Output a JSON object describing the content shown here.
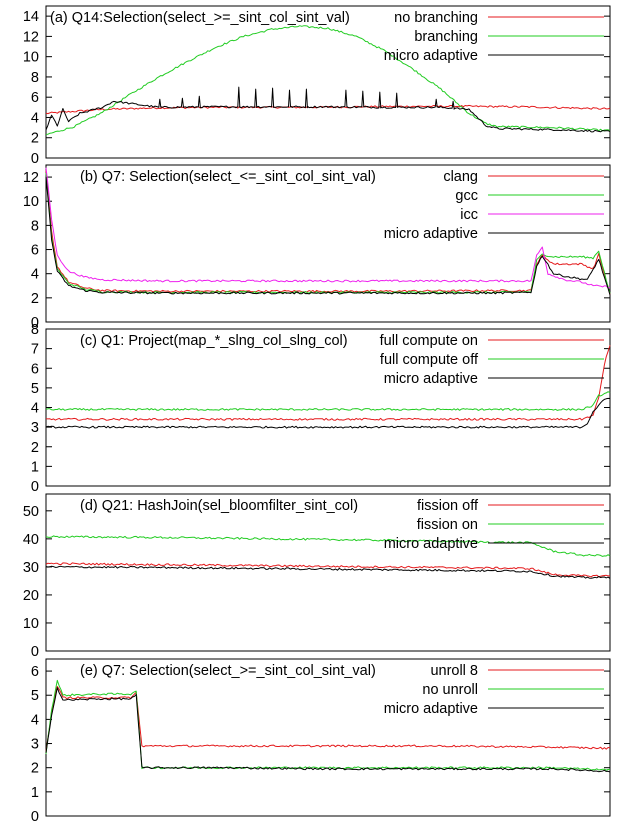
{
  "chart_data": [
    {
      "type": "line",
      "title": "(a) Q14:Selection(select_>=_sint_col_sint_val)",
      "xlabel": "",
      "ylabel": "",
      "ylim": [
        0,
        15
      ],
      "yticks": [
        0,
        2,
        4,
        6,
        8,
        10,
        12,
        14
      ],
      "grid": false,
      "legend": "top-right",
      "series": [
        {
          "name": "no branching",
          "color": "#e41a1c",
          "points": [
            [
              0,
              4.4
            ],
            [
              0.05,
              4.6
            ],
            [
              0.1,
              4.8
            ],
            [
              0.2,
              4.95
            ],
            [
              0.3,
              5.0
            ],
            [
              0.45,
              5.0
            ],
            [
              0.55,
              5.05
            ],
            [
              0.65,
              5.1
            ],
            [
              0.75,
              5.1
            ],
            [
              0.85,
              5.05
            ],
            [
              1.0,
              4.85
            ]
          ]
        },
        {
          "name": "branching",
          "color": "#22cc22",
          "points": [
            [
              0,
              2.3
            ],
            [
              0.05,
              3.1
            ],
            [
              0.1,
              4.5
            ],
            [
              0.15,
              6.3
            ],
            [
              0.2,
              8.0
            ],
            [
              0.25,
              9.5
            ],
            [
              0.3,
              10.9
            ],
            [
              0.35,
              12.0
            ],
            [
              0.4,
              12.7
            ],
            [
              0.45,
              13.0
            ],
            [
              0.5,
              12.8
            ],
            [
              0.55,
              12.0
            ],
            [
              0.6,
              10.6
            ],
            [
              0.65,
              8.8
            ],
            [
              0.7,
              6.8
            ],
            [
              0.75,
              4.4
            ],
            [
              0.78,
              3.4
            ],
            [
              0.8,
              3.1
            ],
            [
              0.9,
              3.0
            ],
            [
              1.0,
              2.7
            ]
          ]
        },
        {
          "name": "micro adaptive",
          "color": "#000000",
          "points": [
            [
              0,
              2.8
            ],
            [
              0.01,
              4.2
            ],
            [
              0.02,
              3.2
            ],
            [
              0.03,
              4.8
            ],
            [
              0.04,
              3.6
            ],
            [
              0.06,
              4.4
            ],
            [
              0.1,
              5.0
            ],
            [
              0.12,
              5.6
            ],
            [
              0.2,
              5.0
            ],
            [
              0.3,
              5.05
            ],
            [
              0.4,
              5.05
            ],
            [
              0.5,
              5.05
            ],
            [
              0.6,
              5.0
            ],
            [
              0.7,
              5.0
            ],
            [
              0.75,
              4.8
            ],
            [
              0.78,
              3.2
            ],
            [
              0.8,
              2.9
            ],
            [
              0.9,
              2.8
            ],
            [
              1.0,
              2.6
            ]
          ],
          "spikes": [
            [
              0.2,
              5.8
            ],
            [
              0.24,
              5.9
            ],
            [
              0.27,
              6.1
            ],
            [
              0.34,
              7.0
            ],
            [
              0.37,
              6.8
            ],
            [
              0.4,
              6.9
            ],
            [
              0.43,
              6.7
            ],
            [
              0.46,
              6.8
            ],
            [
              0.53,
              6.7
            ],
            [
              0.56,
              6.6
            ],
            [
              0.59,
              6.5
            ],
            [
              0.62,
              6.4
            ],
            [
              0.69,
              5.8
            ],
            [
              0.72,
              5.6
            ]
          ]
        }
      ]
    },
    {
      "type": "line",
      "title": "(b) Q7: Selection(select_<=_sint_col_sint_val)",
      "xlabel": "",
      "ylabel": "",
      "ylim": [
        0,
        13
      ],
      "yticks": [
        0,
        2,
        4,
        6,
        8,
        10,
        12
      ],
      "grid": false,
      "legend": "top-right",
      "series": [
        {
          "name": "clang",
          "color": "#e41a1c",
          "points": [
            [
              0,
              12.5
            ],
            [
              0.01,
              7.5
            ],
            [
              0.02,
              4.6
            ],
            [
              0.04,
              3.3
            ],
            [
              0.07,
              2.8
            ],
            [
              0.1,
              2.6
            ],
            [
              0.2,
              2.55
            ],
            [
              0.4,
              2.55
            ],
            [
              0.6,
              2.55
            ],
            [
              0.8,
              2.6
            ],
            [
              0.86,
              2.6
            ],
            [
              0.87,
              4.8
            ],
            [
              0.88,
              5.5
            ],
            [
              0.9,
              4.8
            ],
            [
              0.95,
              4.8
            ],
            [
              0.97,
              4.4
            ],
            [
              0.98,
              5.6
            ],
            [
              1.0,
              2.3
            ]
          ]
        },
        {
          "name": "gcc",
          "color": "#22cc22",
          "points": [
            [
              0,
              12.3
            ],
            [
              0.01,
              7.0
            ],
            [
              0.02,
              4.4
            ],
            [
              0.04,
              3.2
            ],
            [
              0.07,
              2.7
            ],
            [
              0.1,
              2.5
            ],
            [
              0.2,
              2.45
            ],
            [
              0.4,
              2.45
            ],
            [
              0.6,
              2.45
            ],
            [
              0.8,
              2.45
            ],
            [
              0.86,
              2.5
            ],
            [
              0.87,
              5.1
            ],
            [
              0.88,
              5.6
            ],
            [
              0.9,
              5.4
            ],
            [
              0.95,
              5.4
            ],
            [
              0.97,
              5.3
            ],
            [
              0.98,
              5.9
            ],
            [
              1.0,
              2.3
            ]
          ]
        },
        {
          "name": "icc",
          "color": "#ee22ee",
          "points": [
            [
              0,
              12.8
            ],
            [
              0.01,
              8.5
            ],
            [
              0.02,
              5.5
            ],
            [
              0.04,
              4.2
            ],
            [
              0.07,
              3.7
            ],
            [
              0.1,
              3.5
            ],
            [
              0.2,
              3.4
            ],
            [
              0.4,
              3.4
            ],
            [
              0.6,
              3.4
            ],
            [
              0.8,
              3.4
            ],
            [
              0.86,
              3.4
            ],
            [
              0.87,
              5.5
            ],
            [
              0.88,
              6.2
            ],
            [
              0.89,
              4.0
            ],
            [
              0.92,
              3.5
            ],
            [
              0.95,
              3.3
            ],
            [
              0.97,
              3.0
            ],
            [
              1.0,
              2.9
            ]
          ]
        },
        {
          "name": "micro adaptive",
          "color": "#000000",
          "points": [
            [
              0,
              12.0
            ],
            [
              0.01,
              6.8
            ],
            [
              0.02,
              4.2
            ],
            [
              0.04,
              3.0
            ],
            [
              0.07,
              2.6
            ],
            [
              0.1,
              2.45
            ],
            [
              0.2,
              2.4
            ],
            [
              0.4,
              2.4
            ],
            [
              0.6,
              2.4
            ],
            [
              0.8,
              2.4
            ],
            [
              0.86,
              2.45
            ],
            [
              0.87,
              4.6
            ],
            [
              0.88,
              5.5
            ],
            [
              0.9,
              4.0
            ],
            [
              0.93,
              3.7
            ],
            [
              0.96,
              3.5
            ],
            [
              0.98,
              5.2
            ],
            [
              1.0,
              2.2
            ]
          ]
        }
      ]
    },
    {
      "type": "line",
      "title": "(c) Q1: Project(map_*_slng_col_slng_col)",
      "xlabel": "",
      "ylabel": "",
      "ylim": [
        0,
        8
      ],
      "yticks": [
        0,
        1,
        2,
        3,
        4,
        5,
        6,
        7,
        8
      ],
      "grid": false,
      "legend": "top-right",
      "series": [
        {
          "name": "full compute on",
          "color": "#e41a1c",
          "points": [
            [
              0,
              3.4
            ],
            [
              0.25,
              3.4
            ],
            [
              0.5,
              3.4
            ],
            [
              0.75,
              3.4
            ],
            [
              0.95,
              3.4
            ],
            [
              0.97,
              3.6
            ],
            [
              0.98,
              4.5
            ],
            [
              0.99,
              6.2
            ],
            [
              1.0,
              7.2
            ]
          ]
        },
        {
          "name": "full compute off",
          "color": "#22cc22",
          "points": [
            [
              0,
              3.9
            ],
            [
              0.25,
              3.9
            ],
            [
              0.5,
              3.9
            ],
            [
              0.75,
              3.9
            ],
            [
              0.95,
              3.9
            ],
            [
              0.97,
              4.1
            ],
            [
              0.98,
              4.6
            ],
            [
              1.0,
              4.8
            ]
          ]
        },
        {
          "name": "micro adaptive",
          "color": "#000000",
          "points": [
            [
              0,
              3.0
            ],
            [
              0.25,
              3.0
            ],
            [
              0.5,
              3.0
            ],
            [
              0.75,
              3.0
            ],
            [
              0.95,
              3.0
            ],
            [
              0.96,
              3.2
            ],
            [
              0.97,
              3.8
            ],
            [
              0.99,
              4.4
            ],
            [
              1.0,
              4.5
            ]
          ]
        }
      ]
    },
    {
      "type": "line",
      "title": "(d) Q21: HashJoin(sel_bloomfilter_sint_col)",
      "xlabel": "",
      "ylabel": "",
      "ylim": [
        0,
        56
      ],
      "yticks": [
        0,
        10,
        20,
        30,
        40,
        50
      ],
      "grid": false,
      "legend": "top-right",
      "series": [
        {
          "name": "fission off",
          "color": "#e41a1c",
          "points": [
            [
              0,
              31.2
            ],
            [
              0.2,
              30.8
            ],
            [
              0.4,
              30.4
            ],
            [
              0.6,
              30.0
            ],
            [
              0.8,
              29.6
            ],
            [
              0.86,
              29.4
            ],
            [
              0.9,
              27.3
            ],
            [
              0.95,
              26.8
            ],
            [
              1.0,
              26.8
            ]
          ]
        },
        {
          "name": "fission on",
          "color": "#22cc22",
          "points": [
            [
              0,
              40.8
            ],
            [
              0.2,
              40.5
            ],
            [
              0.4,
              40.0
            ],
            [
              0.6,
              39.5
            ],
            [
              0.8,
              38.8
            ],
            [
              0.86,
              38.6
            ],
            [
              0.9,
              35.6
            ],
            [
              0.95,
              34.2
            ],
            [
              1.0,
              34.0
            ]
          ]
        },
        {
          "name": "micro adaptive",
          "color": "#000000",
          "points": [
            [
              0,
              30.0
            ],
            [
              0.2,
              29.8
            ],
            [
              0.4,
              29.4
            ],
            [
              0.6,
              29.0
            ],
            [
              0.8,
              28.6
            ],
            [
              0.86,
              28.4
            ],
            [
              0.9,
              26.8
            ],
            [
              0.95,
              26.2
            ],
            [
              1.0,
              26.2
            ]
          ]
        }
      ]
    },
    {
      "type": "line",
      "title": "(e) Q7: Selection(select_>=_sint_col_sint_val)",
      "xlabel": "",
      "ylabel": "",
      "ylim": [
        0,
        6.5
      ],
      "yticks": [
        0,
        1,
        2,
        3,
        4,
        5,
        6
      ],
      "grid": false,
      "legend": "top-right",
      "series": [
        {
          "name": "unroll 8",
          "color": "#e41a1c",
          "points": [
            [
              0,
              2.7
            ],
            [
              0.01,
              4.3
            ],
            [
              0.02,
              5.4
            ],
            [
              0.03,
              4.9
            ],
            [
              0.1,
              4.9
            ],
            [
              0.15,
              4.9
            ],
            [
              0.16,
              5.1
            ],
            [
              0.17,
              2.9
            ],
            [
              0.3,
              2.9
            ],
            [
              0.5,
              2.9
            ],
            [
              0.7,
              2.9
            ],
            [
              0.9,
              2.85
            ],
            [
              1.0,
              2.8
            ]
          ]
        },
        {
          "name": "no unroll",
          "color": "#22cc22",
          "points": [
            [
              0,
              2.6
            ],
            [
              0.01,
              4.4
            ],
            [
              0.02,
              5.6
            ],
            [
              0.03,
              5.0
            ],
            [
              0.1,
              5.05
            ],
            [
              0.15,
              5.05
            ],
            [
              0.16,
              5.2
            ],
            [
              0.17,
              2.0
            ],
            [
              0.3,
              2.0
            ],
            [
              0.5,
              2.0
            ],
            [
              0.7,
              2.0
            ],
            [
              0.9,
              2.0
            ],
            [
              1.0,
              1.9
            ]
          ]
        },
        {
          "name": "micro adaptive",
          "color": "#000000",
          "points": [
            [
              0,
              2.6
            ],
            [
              0.01,
              4.2
            ],
            [
              0.02,
              5.3
            ],
            [
              0.03,
              4.8
            ],
            [
              0.1,
              4.85
            ],
            [
              0.15,
              4.85
            ],
            [
              0.16,
              5.0
            ],
            [
              0.17,
              2.0
            ],
            [
              0.3,
              2.0
            ],
            [
              0.5,
              1.95
            ],
            [
              0.7,
              1.95
            ],
            [
              0.9,
              1.95
            ],
            [
              1.0,
              1.85
            ]
          ]
        }
      ]
    }
  ]
}
